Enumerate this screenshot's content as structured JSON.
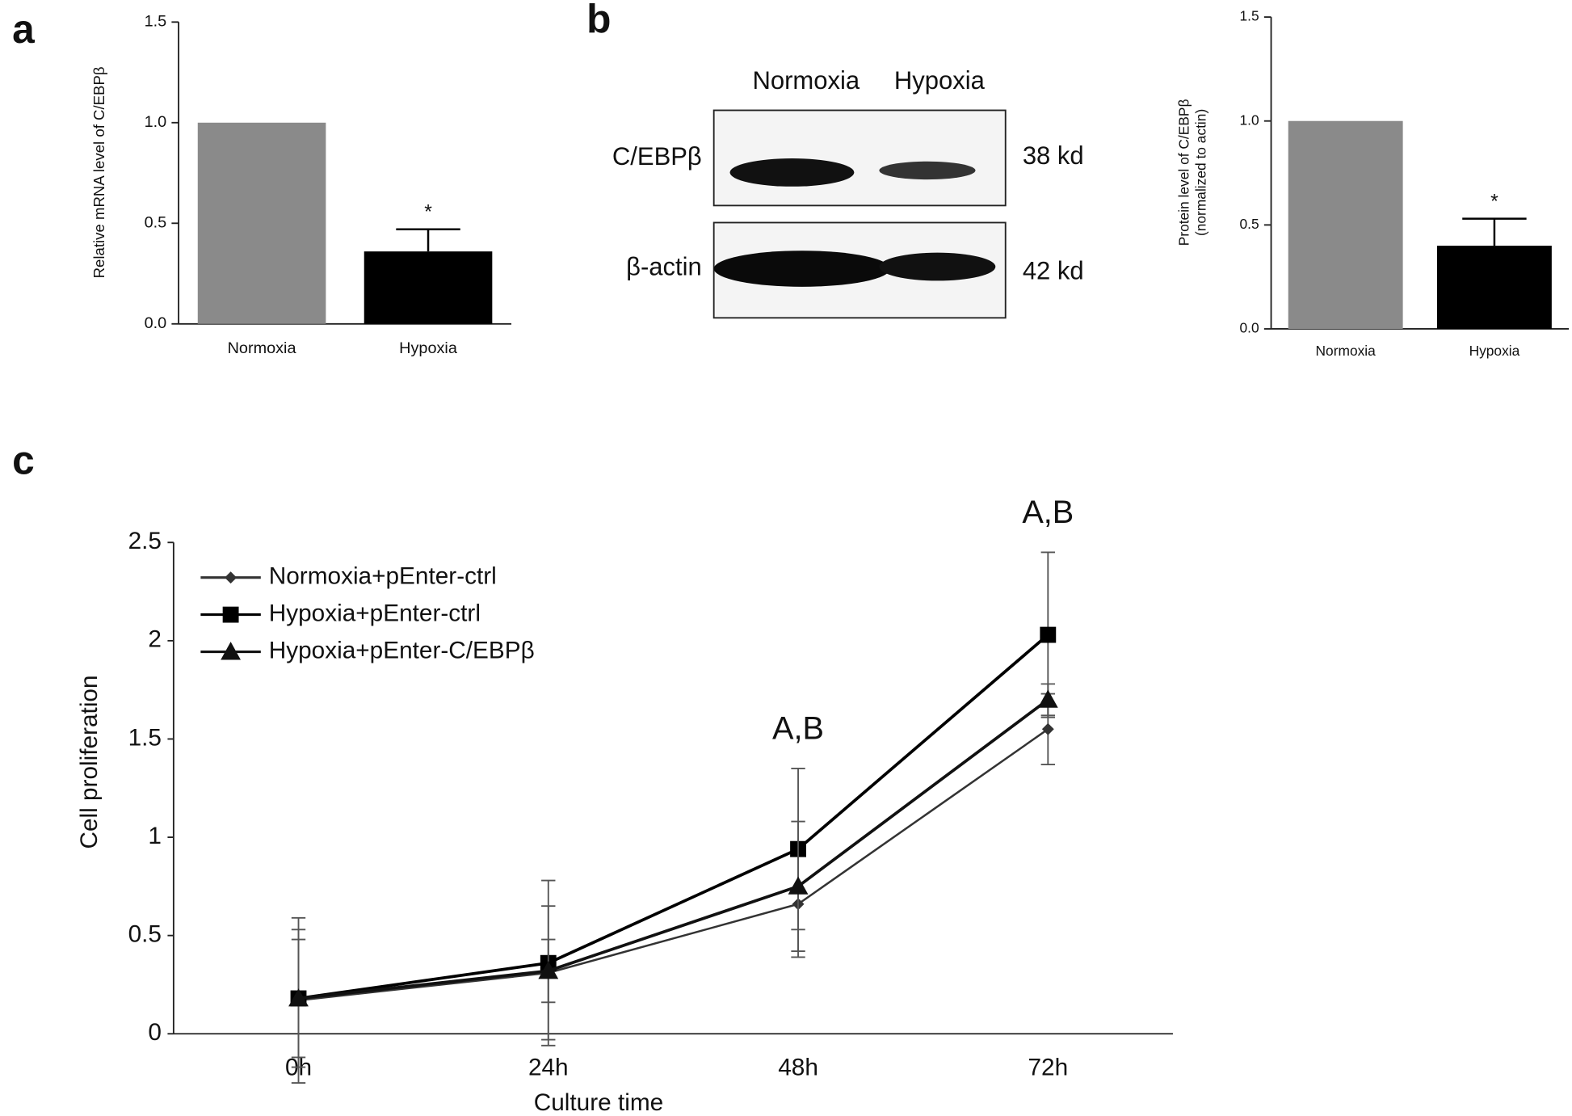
{
  "panel_labels": [
    "a",
    "b",
    "c"
  ],
  "blot": {
    "lanes": [
      "Normoxia",
      "Hypoxia"
    ],
    "proteins": [
      "C/EBPβ",
      "β-actin"
    ],
    "sizes": [
      "38 kd",
      "42 kd"
    ]
  },
  "chart_data": [
    {
      "type": "bar",
      "ylabel": "Relative mRNA level of C/EBPβ",
      "categories": [
        "Normoxia",
        "Hypoxia"
      ],
      "values": [
        1.0,
        0.36
      ],
      "errors": [
        null,
        0.11
      ],
      "colors": [
        "#8a8a8a",
        "#000000"
      ],
      "annotations": [
        null,
        "*"
      ],
      "ylim": [
        0,
        1.5
      ],
      "yticks": [
        {
          "value": 0,
          "label": "0.0"
        },
        {
          "value": 0.5,
          "label": "0.5"
        },
        {
          "value": 1,
          "label": "1.0"
        },
        {
          "value": 1.5,
          "label": "1.5"
        }
      ]
    },
    {
      "type": "bar",
      "ylabel_lines": [
        "Protein level of C/EBPβ",
        "(normalized to actin)"
      ],
      "categories": [
        "Normoxia",
        "Hypoxia"
      ],
      "values": [
        1.0,
        0.4
      ],
      "errors": [
        null,
        0.13
      ],
      "colors": [
        "#8a8a8a",
        "#000000"
      ],
      "annotations": [
        null,
        "*"
      ],
      "ylim": [
        0,
        1.5
      ],
      "yticks": [
        {
          "value": 0,
          "label": "0.0"
        },
        {
          "value": 0.5,
          "label": "0.5"
        },
        {
          "value": 1,
          "label": "1.0"
        },
        {
          "value": 1.5,
          "label": "1.5"
        }
      ]
    },
    {
      "type": "line",
      "xlabel": "Culture time",
      "ylabel": "Cell proliferation",
      "categories": [
        "0h",
        "24h",
        "48h",
        "72h"
      ],
      "series": [
        {
          "name": "Normoxia+pEnter-ctrl",
          "color": "#333333",
          "marker": "diamond",
          "values": [
            0.17,
            0.31,
            0.66,
            1.55
          ],
          "errors": [
            0.42,
            0.34,
            0.27,
            0.18
          ]
        },
        {
          "name": "Hypoxia+pEnter-ctrl",
          "color": "#000000",
          "marker": "square",
          "values": [
            0.18,
            0.36,
            0.94,
            2.03
          ],
          "errors": [
            0.35,
            0.42,
            0.41,
            0.42
          ]
        },
        {
          "name": "Hypoxia+pEnter-C/EBPβ",
          "color": "#111111",
          "marker": "triangle",
          "values": [
            0.18,
            0.32,
            0.75,
            1.7
          ],
          "errors": [
            0.3,
            0.16,
            0.33,
            0.08
          ]
        }
      ],
      "annotations": [
        null,
        null,
        "A,B",
        "A,B"
      ],
      "ylim": [
        0,
        2.5
      ],
      "yticks": [
        0,
        0.5,
        1,
        1.5,
        2,
        2.5
      ]
    }
  ]
}
